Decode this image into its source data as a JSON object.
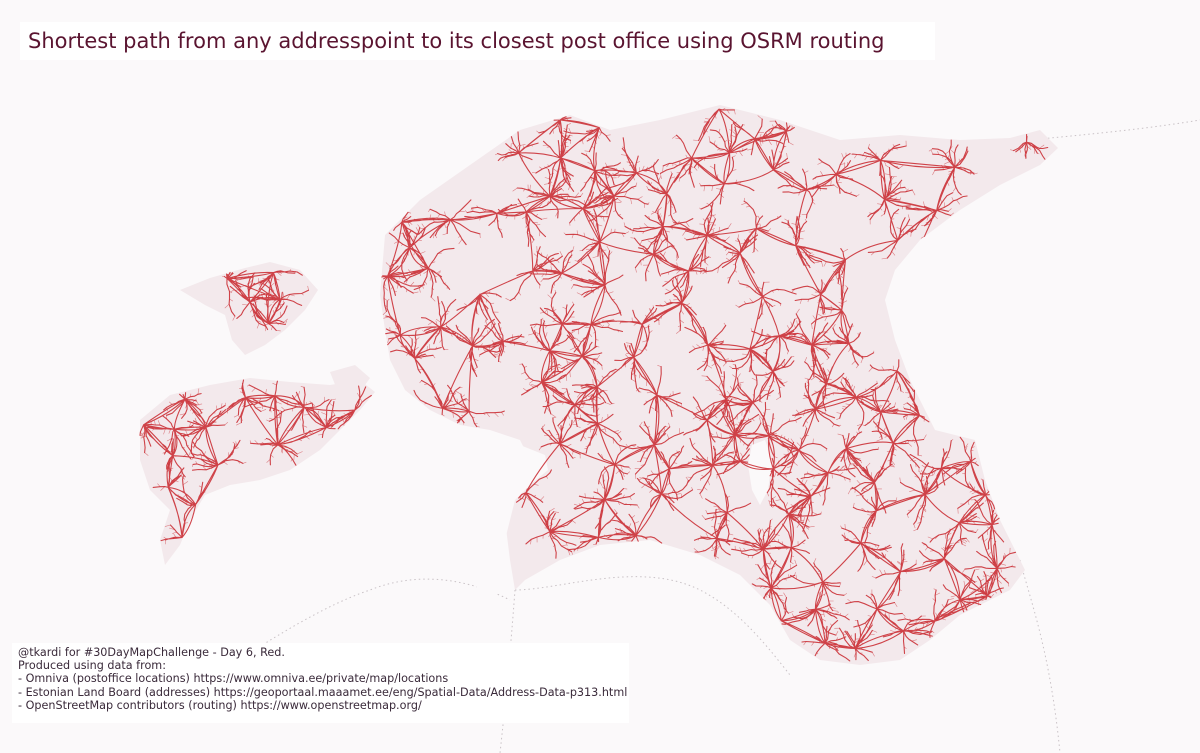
{
  "title": "Shortest path from any addresspoint to its closest post office using OSRM routing",
  "credits": {
    "line1": "@tkardi for #30DayMapChallenge - Day 6, Red.",
    "line2": "Produced using data from:",
    "line3": "- Omniva (postoffice locations) https://www.omniva.ee/private/map/locations",
    "line4": "- Estonian Land Board (addresses) https://geoportaal.maaamet.ee/eng/Spatial-Data/Address-Data-p313.html",
    "line5": "- OpenStreetMap contributors (routing) https://www.openstreetmap.org/"
  },
  "style": {
    "route_color": "#c8242b",
    "land_tint": "#f3e9ec",
    "background": "#fbf9fa",
    "title_color": "#5a1430"
  }
}
